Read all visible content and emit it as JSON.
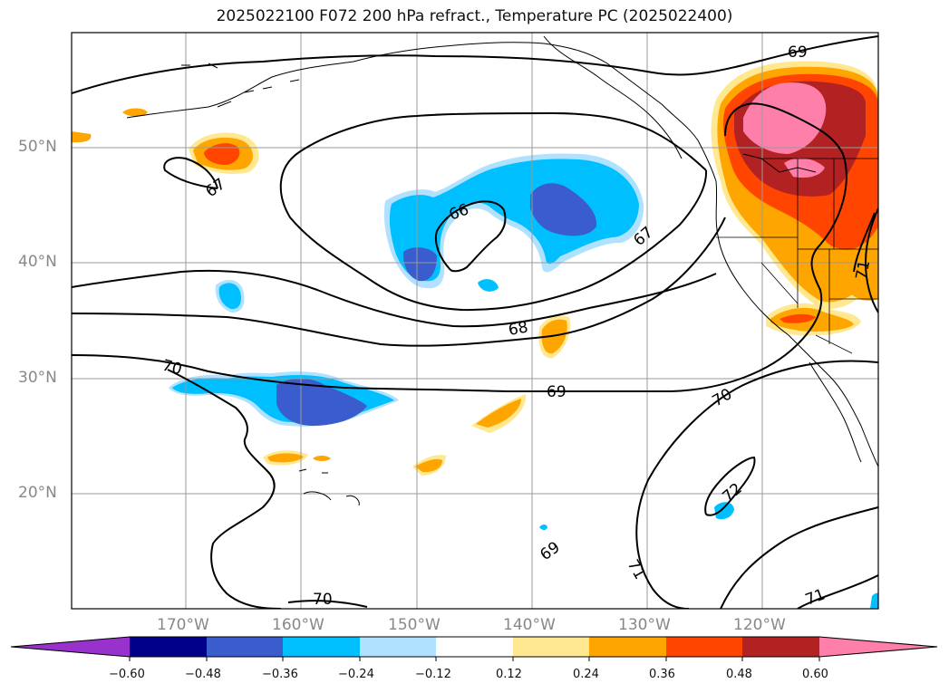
{
  "title": "2025022100 F072 200 hPa refract., Temperature PC (2025022400)",
  "latitude_labels": [
    "50°N",
    "40°N",
    "30°N",
    "20°N"
  ],
  "longitude_labels": [
    "170°W",
    "160°W",
    "150°W",
    "140°W",
    "130°W",
    "120°W"
  ],
  "contour_labels": [
    "69",
    "67",
    "66",
    "67",
    "68",
    "69",
    "70",
    "70",
    "70",
    "71",
    "72",
    "69",
    "71",
    "71"
  ],
  "colorbar": {
    "tick_labels": [
      "−0.60",
      "−0.48",
      "−0.36",
      "−0.24",
      "−0.12",
      "0.12",
      "0.24",
      "0.36",
      "0.48",
      "0.60"
    ],
    "colors": [
      "#9932cc",
      "#00008b",
      "#3a5ccc",
      "#00bfff",
      "#b0e2ff",
      "#ffffff",
      "#ffe88f",
      "#ffa500",
      "#ff4500",
      "#b22222",
      "#ff7fab",
      "#ff7fab"
    ]
  }
}
